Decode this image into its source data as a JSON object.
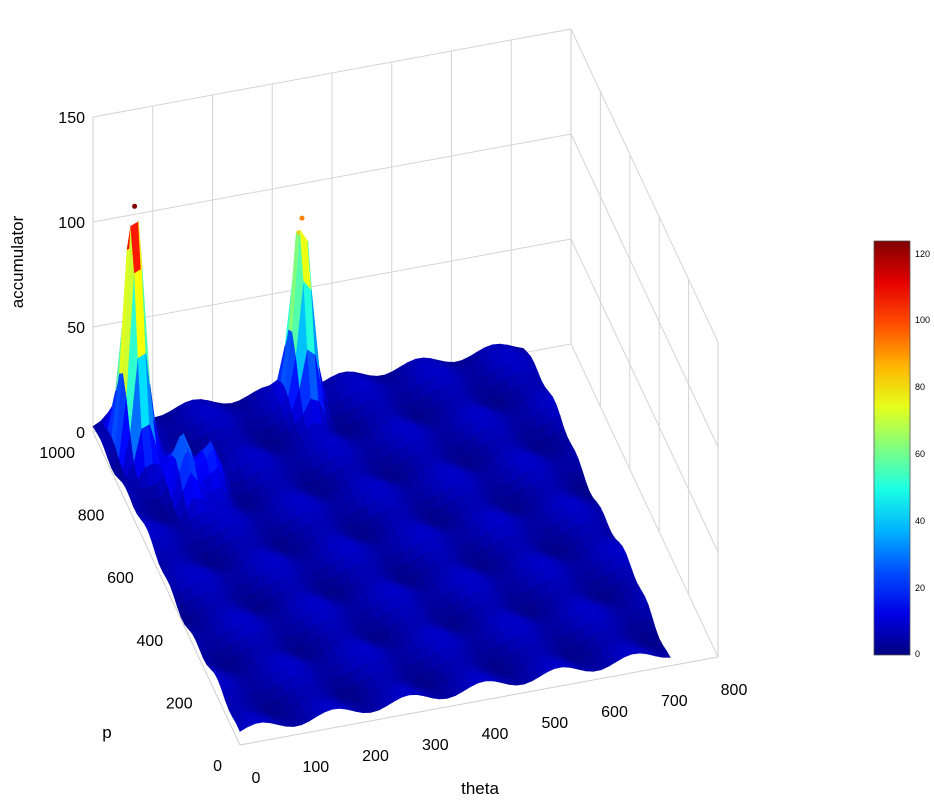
{
  "chart_data": {
    "type": "surface3d",
    "title": "",
    "xlabel": "theta",
    "ylabel": "p",
    "zlabel": "accumulator",
    "x_ticks": [
      "0",
      "100",
      "200",
      "300",
      "400",
      "500",
      "600",
      "700",
      "800"
    ],
    "y_ticks": [
      "0",
      "200",
      "400",
      "600",
      "800",
      "1000"
    ],
    "z_ticks": [
      "0",
      "50",
      "100",
      "150"
    ],
    "xlim": [
      0,
      800
    ],
    "ylim": [
      0,
      1000
    ],
    "zlim": [
      0,
      150
    ],
    "grid": true,
    "colormap": "jet",
    "colorbar": {
      "position": "right",
      "range": [
        0,
        120
      ],
      "ticks": [
        "0",
        "20",
        "40",
        "60",
        "80",
        "100",
        "120"
      ]
    },
    "peaks": [
      {
        "theta": 45,
        "p": 900,
        "accumulator": 120
      },
      {
        "theta": 90,
        "p": 740,
        "accumulator": 25
      },
      {
        "theta": 140,
        "p": 760,
        "accumulator": 18
      },
      {
        "theta": 340,
        "p": 960,
        "accumulator": 90
      }
    ],
    "background_level": 5
  }
}
